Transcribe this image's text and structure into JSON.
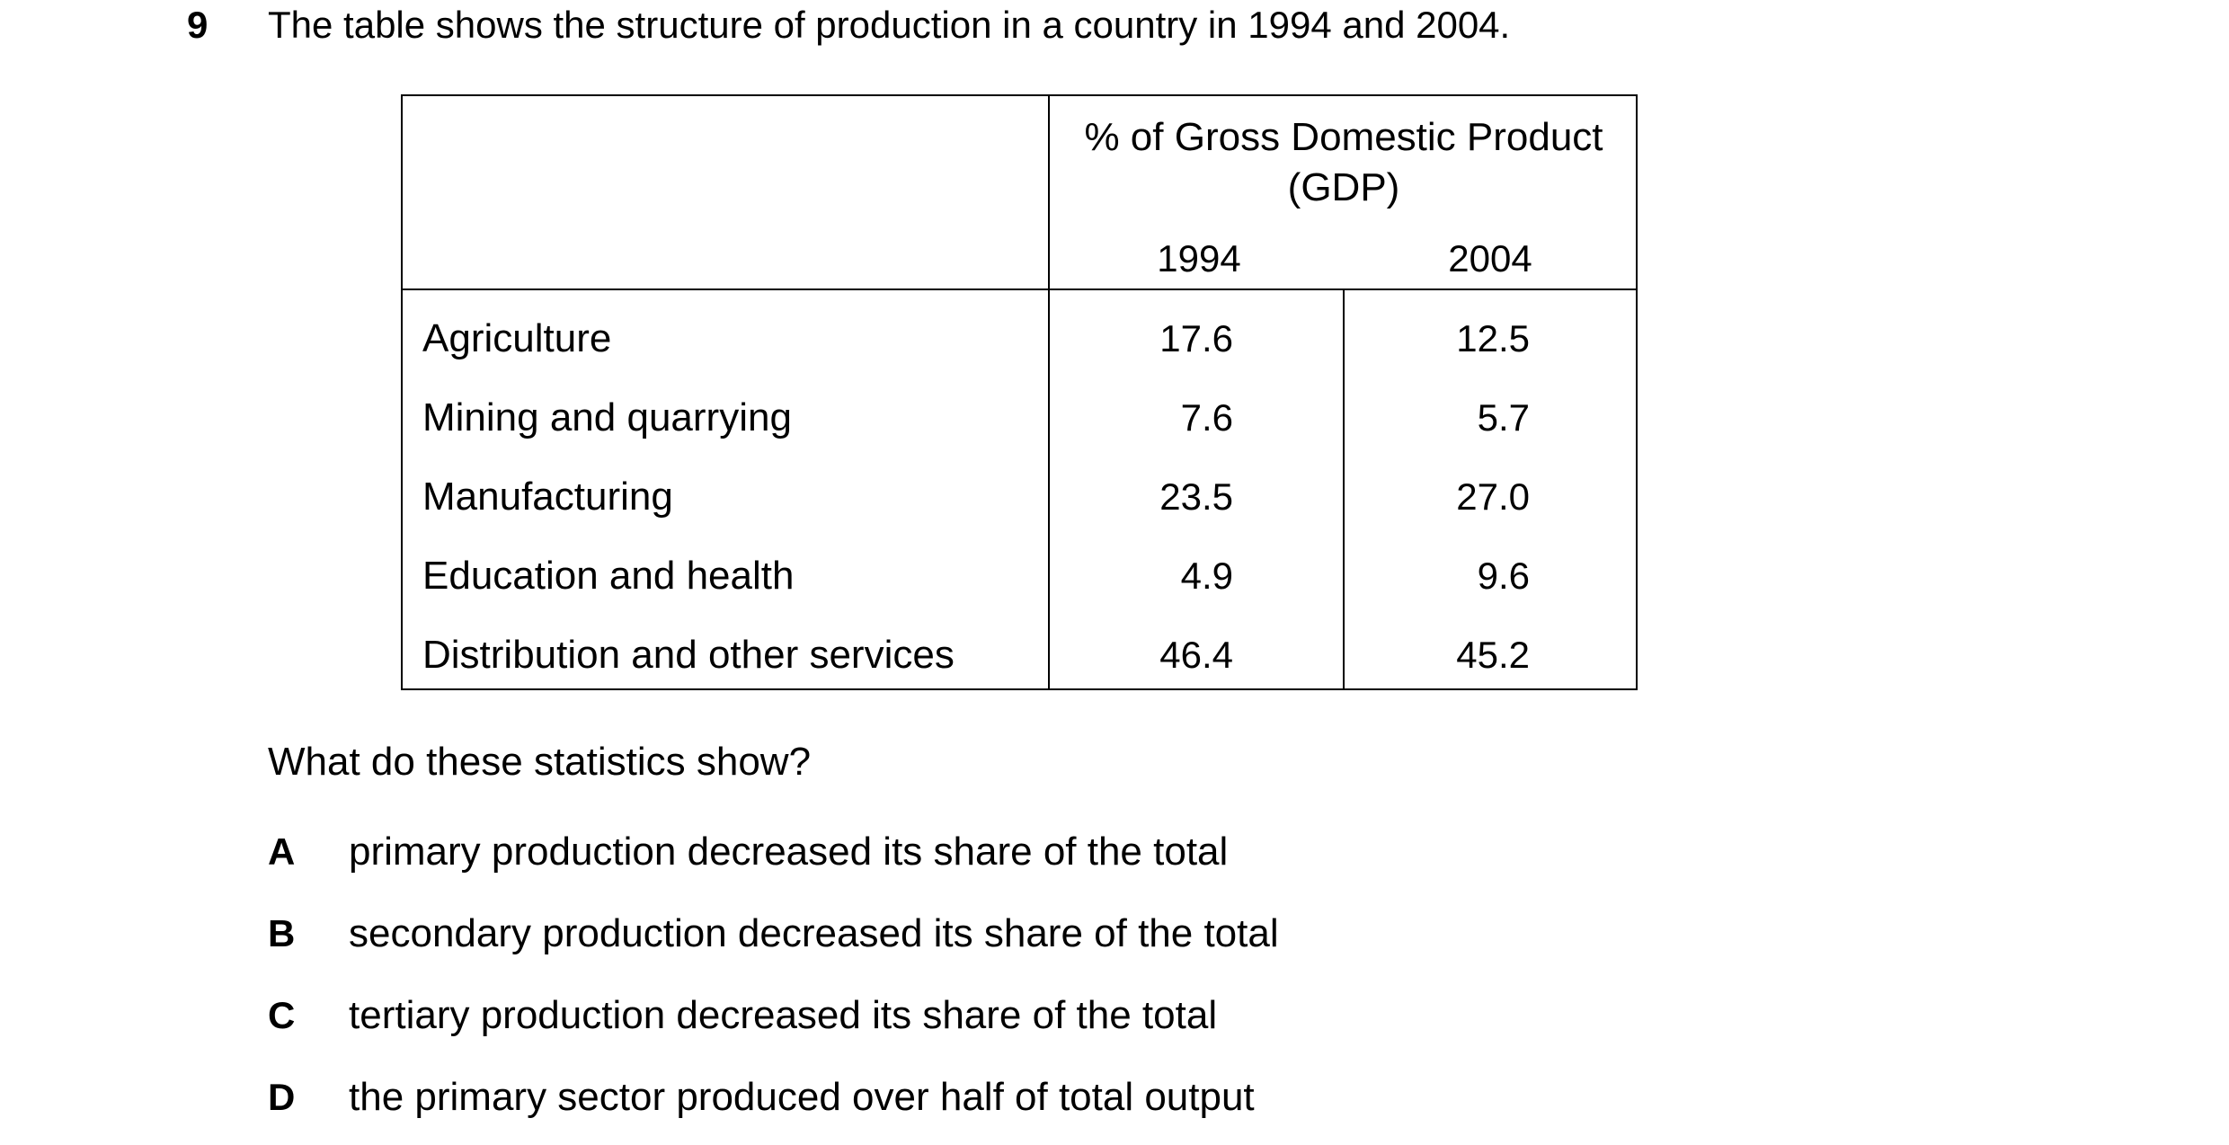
{
  "question": {
    "number": "9",
    "stem": "The table shows the structure of production in a country in 1994 and 2004.",
    "prompt": "What do these statistics show?",
    "options": [
      {
        "letter": "A",
        "text": "primary production decreased its share of the total"
      },
      {
        "letter": "B",
        "text": "secondary production decreased its share of the total"
      },
      {
        "letter": "C",
        "text": "tertiary production decreased its share of the total"
      },
      {
        "letter": "D",
        "text": "the primary sector produced over half of total output"
      }
    ]
  },
  "table": {
    "header_line1": "% of Gross Domestic Product",
    "header_line2": "(GDP)",
    "years": [
      "1994",
      "2004"
    ],
    "rows": [
      {
        "label": "Agriculture",
        "v1994": "17.6",
        "v2004": "12.5"
      },
      {
        "label": "Mining and quarrying",
        "v1994": "7.6",
        "v2004": "5.7"
      },
      {
        "label": "Manufacturing",
        "v1994": "23.5",
        "v2004": "27.0"
      },
      {
        "label": "Education and health",
        "v1994": "4.9",
        "v2004": "9.6"
      },
      {
        "label": "Distribution and other services",
        "v1994": "46.4",
        "v2004": "45.2"
      }
    ]
  }
}
